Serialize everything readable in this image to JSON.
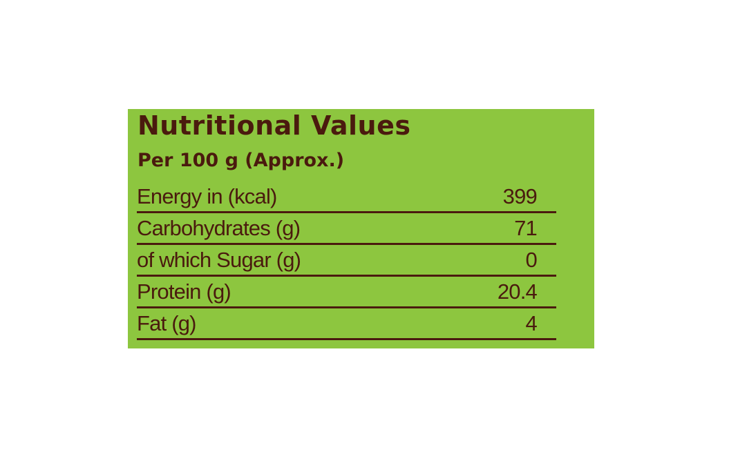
{
  "title": "Nutritional Values",
  "subtitle": "Per 100 g (Approx.)",
  "colors": {
    "background": "#8dc63f",
    "text": "#4a1a0e"
  },
  "rows": [
    {
      "label": "Energy in (kcal)",
      "value": "399"
    },
    {
      "label": "Carbohydrates (g)",
      "value": "71"
    },
    {
      "label": "of which Sugar (g)",
      "value": "0"
    },
    {
      "label": "Protein (g)",
      "value": "20.4"
    },
    {
      "label": "Fat (g)",
      "value": "4"
    }
  ]
}
